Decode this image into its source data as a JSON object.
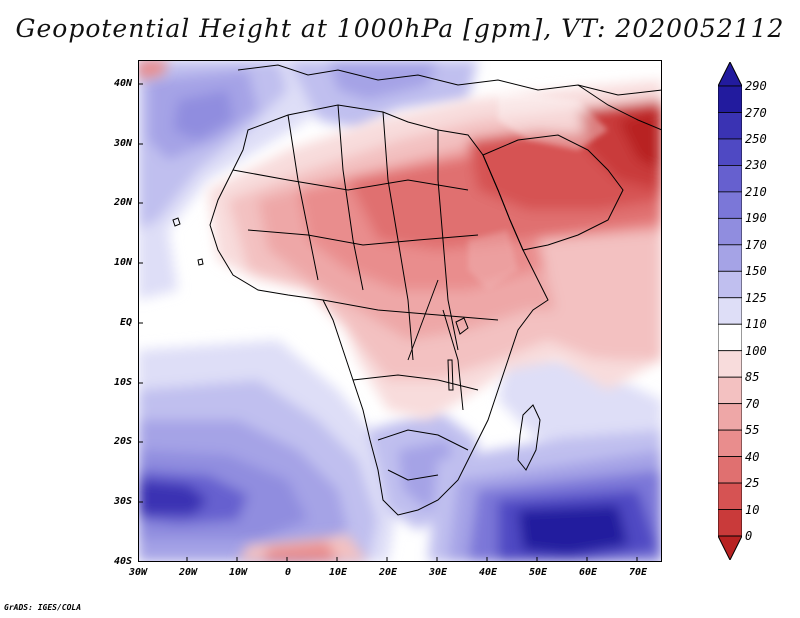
{
  "title": "Geopotential Height at 1000hPa [gpm], VT: 2020052112",
  "footer": "GrADS: IGES/COLA",
  "lat_labels": [
    "40N",
    "30N",
    "20N",
    "10N",
    "EQ",
    "10S",
    "20S",
    "30S",
    "40S"
  ],
  "lon_labels": [
    "30W",
    "20W",
    "10W",
    "0",
    "10E",
    "20E",
    "30E",
    "40E",
    "50E",
    "60E",
    "70E"
  ],
  "colorbar": {
    "labels": [
      "290",
      "270",
      "250",
      "230",
      "210",
      "190",
      "170",
      "150",
      "125",
      "110",
      "100",
      "85",
      "70",
      "55",
      "40",
      "25",
      "10",
      "0"
    ],
    "colors": [
      "#221b9e",
      "#3a33b3",
      "#4f49c3",
      "#6660cf",
      "#7b77d8",
      "#908ddf",
      "#a5a3e6",
      "#c0bfef",
      "#dedef7",
      "#ffffff",
      "#f8dcdc",
      "#f3c1c1",
      "#eea7a7",
      "#e98d8d",
      "#e07070",
      "#d65353",
      "#c93a3a",
      "#b82222"
    ]
  },
  "map": {
    "variable": "Geopotential Height",
    "level": "1000hPa",
    "units": "gpm",
    "valid_time": "2020052112",
    "lon_range": [
      -30,
      75
    ],
    "lat_range": [
      -40,
      45
    ]
  }
}
